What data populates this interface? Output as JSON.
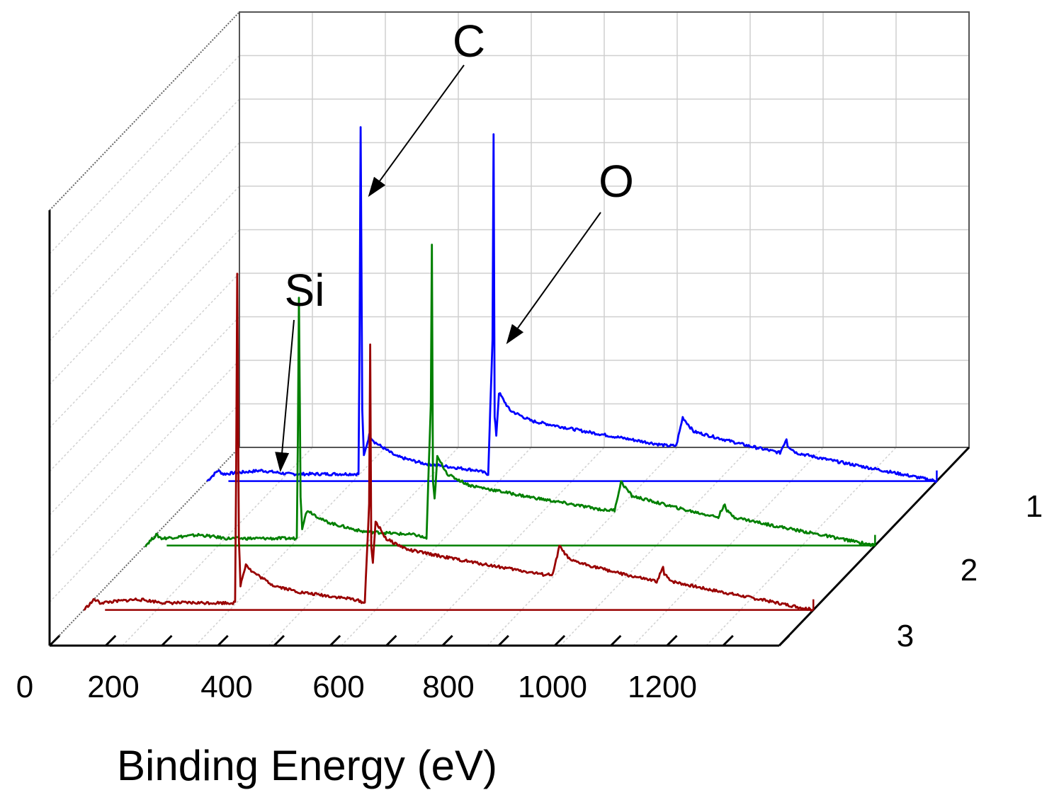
{
  "chart_data": {
    "type": "line",
    "view": "3d-waterfall",
    "title": "",
    "xlabel": "Binding Energy (eV)",
    "ylabel": "",
    "x_ticks": [
      "0",
      "200",
      "400",
      "600",
      "800",
      "1000",
      "1200"
    ],
    "xlim": [
      0,
      1350
    ],
    "series_axis_ticks": [
      "1",
      "2",
      "3"
    ],
    "series": [
      {
        "name": "1",
        "color": "#0000ff",
        "x": [
          0,
          20,
          30,
          100,
          150,
          200,
          250,
          280,
          282,
          284,
          287,
          290,
          295,
          300,
          310,
          330,
          350,
          400,
          500,
          520,
          528,
          530,
          532,
          535,
          540,
          560,
          600,
          700,
          850,
          868,
          880,
          900,
          1000,
          1060,
          1072,
          1074,
          1090,
          1150,
          1250,
          1350
        ],
        "y": [
          0,
          3,
          2,
          3,
          2,
          2,
          2,
          2,
          40,
          100,
          20,
          7,
          10,
          13,
          11,
          9,
          7,
          5,
          3,
          2,
          40,
          98,
          18,
          13,
          25,
          20,
          17,
          14,
          10,
          10,
          18,
          14,
          10,
          8,
          12,
          10,
          8,
          6,
          3,
          0
        ]
      },
      {
        "name": "2",
        "color": "#008000",
        "x": [
          0,
          20,
          30,
          100,
          150,
          200,
          250,
          280,
          282,
          284,
          287,
          290,
          295,
          300,
          310,
          330,
          350,
          400,
          500,
          520,
          528,
          530,
          532,
          535,
          540,
          560,
          600,
          700,
          850,
          868,
          880,
          900,
          1000,
          1060,
          1072,
          1074,
          1090,
          1150,
          1250,
          1350
        ],
        "y": [
          0,
          3,
          2,
          3,
          2,
          2,
          2,
          2,
          30,
          70,
          14,
          5,
          8,
          10,
          9,
          7,
          6,
          4,
          3,
          2,
          40,
          85,
          18,
          13,
          25,
          20,
          17,
          14,
          10,
          10,
          18,
          14,
          10,
          8,
          12,
          10,
          8,
          6,
          3,
          0
        ]
      },
      {
        "name": "3",
        "color": "#990000",
        "x": [
          0,
          20,
          30,
          100,
          150,
          200,
          250,
          280,
          282,
          284,
          287,
          290,
          295,
          300,
          310,
          330,
          350,
          400,
          500,
          520,
          528,
          530,
          532,
          535,
          540,
          560,
          600,
          700,
          850,
          868,
          880,
          900,
          1000,
          1060,
          1072,
          1074,
          1090,
          1150,
          1250,
          1350
        ],
        "y": [
          0,
          3,
          2,
          3,
          2,
          2,
          2,
          2,
          40,
          95,
          20,
          7,
          10,
          13,
          11,
          9,
          7,
          5,
          3,
          2,
          30,
          75,
          18,
          13,
          25,
          20,
          17,
          14,
          10,
          10,
          18,
          14,
          10,
          8,
          12,
          10,
          8,
          6,
          3,
          0
        ]
      }
    ],
    "annotations": [
      {
        "text": "C",
        "series": "1",
        "x": 284
      },
      {
        "text": "O",
        "series": "1",
        "x": 530
      },
      {
        "text": "Si",
        "series": "1",
        "x": 100
      }
    ]
  }
}
